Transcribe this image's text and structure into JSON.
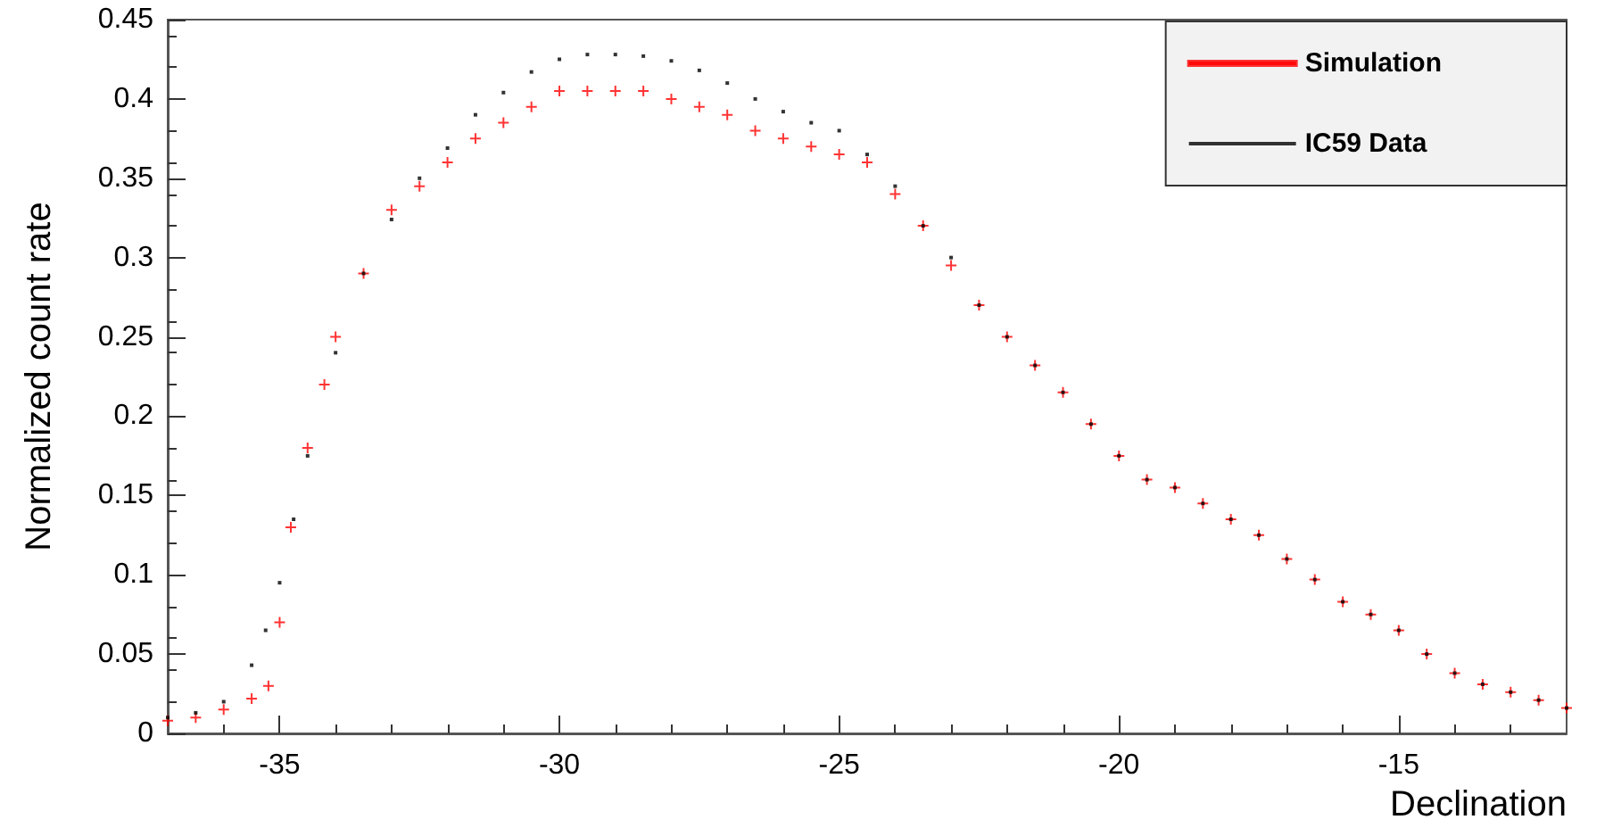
{
  "chart_data": {
    "type": "scatter",
    "xlabel": "Declination",
    "ylabel": "Normalized count rate",
    "xlim": [
      -37,
      -12
    ],
    "xticks": [
      -35,
      -30,
      -25,
      -20,
      -15
    ],
    "ylim": [
      0,
      0.45
    ],
    "yticks": [
      0,
      0.05,
      0.1,
      0.15,
      0.2,
      0.25,
      0.3,
      0.35,
      0.4,
      0.45
    ],
    "legend": "top right",
    "grid": false,
    "series": [
      {
        "name": "Simulation",
        "color": "#ff0000",
        "marker": "cross",
        "x": [
          -37,
          -36.5,
          -36,
          -35.5,
          -35.2,
          -35,
          -34.8,
          -34.5,
          -34.2,
          -34,
          -33.5,
          -33,
          -32.5,
          -32,
          -31.5,
          -31,
          -30.5,
          -30,
          -29.5,
          -29,
          -28.5,
          -28,
          -27.5,
          -27,
          -26.5,
          -26,
          -25.5,
          -25,
          -24.5,
          -24,
          -23.5,
          -23,
          -22.5,
          -22,
          -21.5,
          -21,
          -20.5,
          -20,
          -19.5,
          -19,
          -18.5,
          -18,
          -17.5,
          -17,
          -16.5,
          -16,
          -15.5,
          -15,
          -14.5,
          -14,
          -13.5,
          -13,
          -12.5,
          -12
        ],
        "values": [
          0.008,
          0.01,
          0.015,
          0.022,
          0.03,
          0.07,
          0.13,
          0.18,
          0.22,
          0.25,
          0.29,
          0.33,
          0.345,
          0.36,
          0.375,
          0.385,
          0.395,
          0.405,
          0.405,
          0.405,
          0.405,
          0.4,
          0.395,
          0.39,
          0.38,
          0.375,
          0.37,
          0.365,
          0.36,
          0.34,
          0.32,
          0.295,
          0.27,
          0.25,
          0.232,
          0.215,
          0.195,
          0.175,
          0.16,
          0.155,
          0.145,
          0.135,
          0.125,
          0.11,
          0.097,
          0.083,
          0.075,
          0.065,
          0.05,
          0.038,
          0.031,
          0.026,
          0.021,
          0.016
        ]
      },
      {
        "name": "IC59 Data",
        "color": "#000000",
        "marker": "square",
        "x": [
          -37,
          -36.5,
          -36,
          -35.5,
          -35.25,
          -35,
          -34.75,
          -34.5,
          -34,
          -33.5,
          -33,
          -32.5,
          -32,
          -31.5,
          -31,
          -30.5,
          -30,
          -29.5,
          -29,
          -28.5,
          -28,
          -27.5,
          -27,
          -26.5,
          -26,
          -25.5,
          -25,
          -24.5,
          -24,
          -23.5,
          -23,
          -22.5,
          -22,
          -21.5,
          -21,
          -20.5,
          -20,
          -19.5,
          -19,
          -18.5,
          -18,
          -17.5,
          -17,
          -16.5,
          -16,
          -15.5,
          -15,
          -14.5,
          -14,
          -13.5,
          -13,
          -12.5,
          -12
        ],
        "values": [
          0.01,
          0.013,
          0.02,
          0.043,
          0.065,
          0.095,
          0.135,
          0.175,
          0.24,
          0.29,
          0.324,
          0.35,
          0.369,
          0.39,
          0.404,
          0.417,
          0.425,
          0.428,
          0.428,
          0.427,
          0.424,
          0.418,
          0.41,
          0.4,
          0.392,
          0.385,
          0.38,
          0.365,
          0.345,
          0.32,
          0.3,
          0.27,
          0.25,
          0.232,
          0.215,
          0.195,
          0.175,
          0.16,
          0.155,
          0.145,
          0.135,
          0.125,
          0.11,
          0.097,
          0.083,
          0.075,
          0.065,
          0.05,
          0.038,
          0.031,
          0.026,
          0.021,
          0.016
        ]
      }
    ]
  }
}
